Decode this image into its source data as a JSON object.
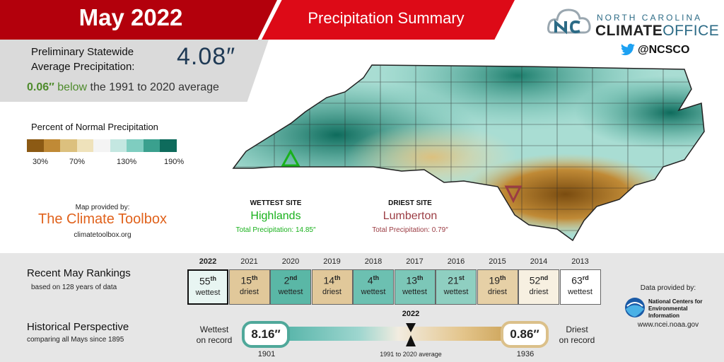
{
  "header": {
    "month": "May 2022",
    "title": "Precipitation Summary",
    "colors": {
      "dark_red": "#b3000c",
      "red": "#dd0a17"
    }
  },
  "summary": {
    "prelim_line1": "Preliminary Statewide",
    "prelim_line2": "Average Precipitation:",
    "value": "4.08″",
    "delta_amount": "0.06″",
    "delta_direction": "below",
    "delta_rest": "the 1991 to 2020 average"
  },
  "logo": {
    "line1": "NORTH CAROLINA",
    "line2a": "CLIMATE",
    "line2b": "OFFICE",
    "twitter": "@NCSCO"
  },
  "legend": {
    "title": "Percent of Normal Precipitation",
    "colors": [
      "#8c5a14",
      "#c08a36",
      "#dcc07e",
      "#efe2bb",
      "#f4f4f4",
      "#c4e7e1",
      "#7fcdc0",
      "#3aa08e",
      "#0e6b5c"
    ],
    "ticks": [
      "30%",
      "70%",
      "130%",
      "190%"
    ]
  },
  "credit": {
    "provided_by": "Map provided by:",
    "name": "The Climate Toolbox",
    "url": "climatetoolbox.org"
  },
  "sites": {
    "wettest_label": "WETTEST SITE",
    "wettest_name": "Highlands",
    "wettest_total": "Total Precipitation: 14.85″",
    "driest_label": "DRIEST SITE",
    "driest_name": "Lumberton",
    "driest_total": "Total Precipitation: 0.79″",
    "wet_color": "#19b11c",
    "dry_color": "#9b3c43"
  },
  "rankings": {
    "title": "Recent May Rankings",
    "subtitle": "based on 128 years of data",
    "years": [
      {
        "year": "2022",
        "num": "55",
        "suffix": "th",
        "word": "wettest",
        "color": "#e8f5f2"
      },
      {
        "year": "2021",
        "num": "15",
        "suffix": "th",
        "word": "driest",
        "color": "#e1c89a"
      },
      {
        "year": "2020",
        "num": "2",
        "suffix": "nd",
        "word": "wettest",
        "color": "#5ab7a6"
      },
      {
        "year": "2019",
        "num": "14",
        "suffix": "th",
        "word": "driest",
        "color": "#e1c89a"
      },
      {
        "year": "2018",
        "num": "4",
        "suffix": "th",
        "word": "wettest",
        "color": "#6cc0b1"
      },
      {
        "year": "2017",
        "num": "13",
        "suffix": "th",
        "word": "wettest",
        "color": "#7cc7b8"
      },
      {
        "year": "2016",
        "num": "21",
        "suffix": "st",
        "word": "wettest",
        "color": "#8fcfc1"
      },
      {
        "year": "2015",
        "num": "19",
        "suffix": "th",
        "word": "driest",
        "color": "#e6d0a6"
      },
      {
        "year": "2014",
        "num": "52",
        "suffix": "nd",
        "word": "driest",
        "color": "#f7f0e1"
      },
      {
        "year": "2013",
        "num": "63",
        "suffix": "rd",
        "word": "wettest",
        "color": "#ffffff"
      }
    ]
  },
  "history": {
    "title": "Historical Perspective",
    "subtitle": "comparing all Mays since 1895",
    "wettest_label_1": "Wettest",
    "wettest_label_2": "on record",
    "wettest_value": "8.16″",
    "wettest_year": "1901",
    "driest_label_1": "Driest",
    "driest_label_2": "on record",
    "driest_value": "0.86″",
    "driest_year": "1936",
    "current_year": "2022",
    "avg_label": "1991 to 2020 average"
  },
  "data_credit": {
    "provided_by": "Data provided by:",
    "name_line1": "National Centers for",
    "name_line2": "Environmental Information",
    "url": "www.ncei.noaa.gov"
  }
}
